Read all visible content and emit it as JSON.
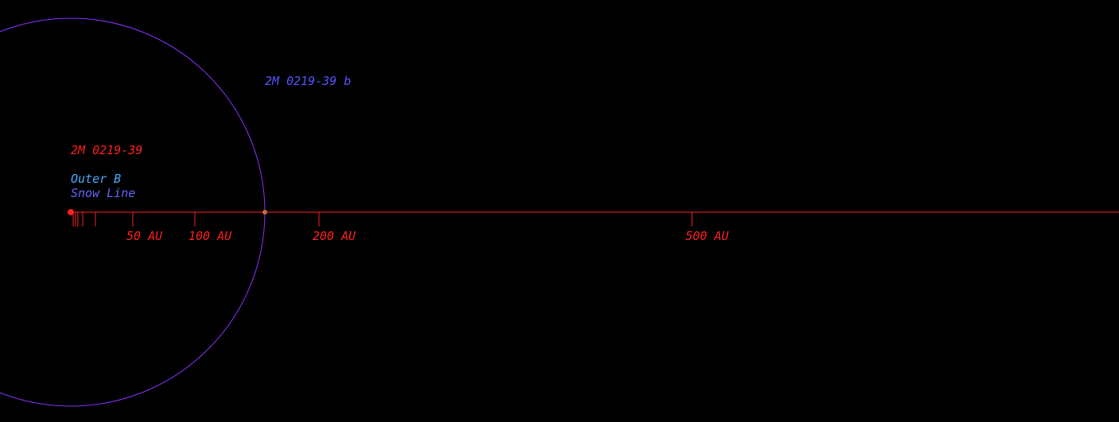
{
  "star": {
    "name": "2M 0219-39",
    "color": "#ff2020"
  },
  "planet": {
    "name": "2M 0219-39 b",
    "label_color": "#5555ff",
    "orbit_color": "#8833ff",
    "marker_color": "#cc6644"
  },
  "zones": {
    "outer_b_label": "Outer B",
    "outer_b_color": "#44aaff",
    "snow_line_label": "Snow Line",
    "snow_line_color": "#6666ff"
  },
  "axis": {
    "color": "#ff2020",
    "ticks": [
      {
        "label": "50 AU"
      },
      {
        "label": "100 AU"
      },
      {
        "label": "200 AU"
      },
      {
        "label": "500 AU"
      }
    ]
  }
}
